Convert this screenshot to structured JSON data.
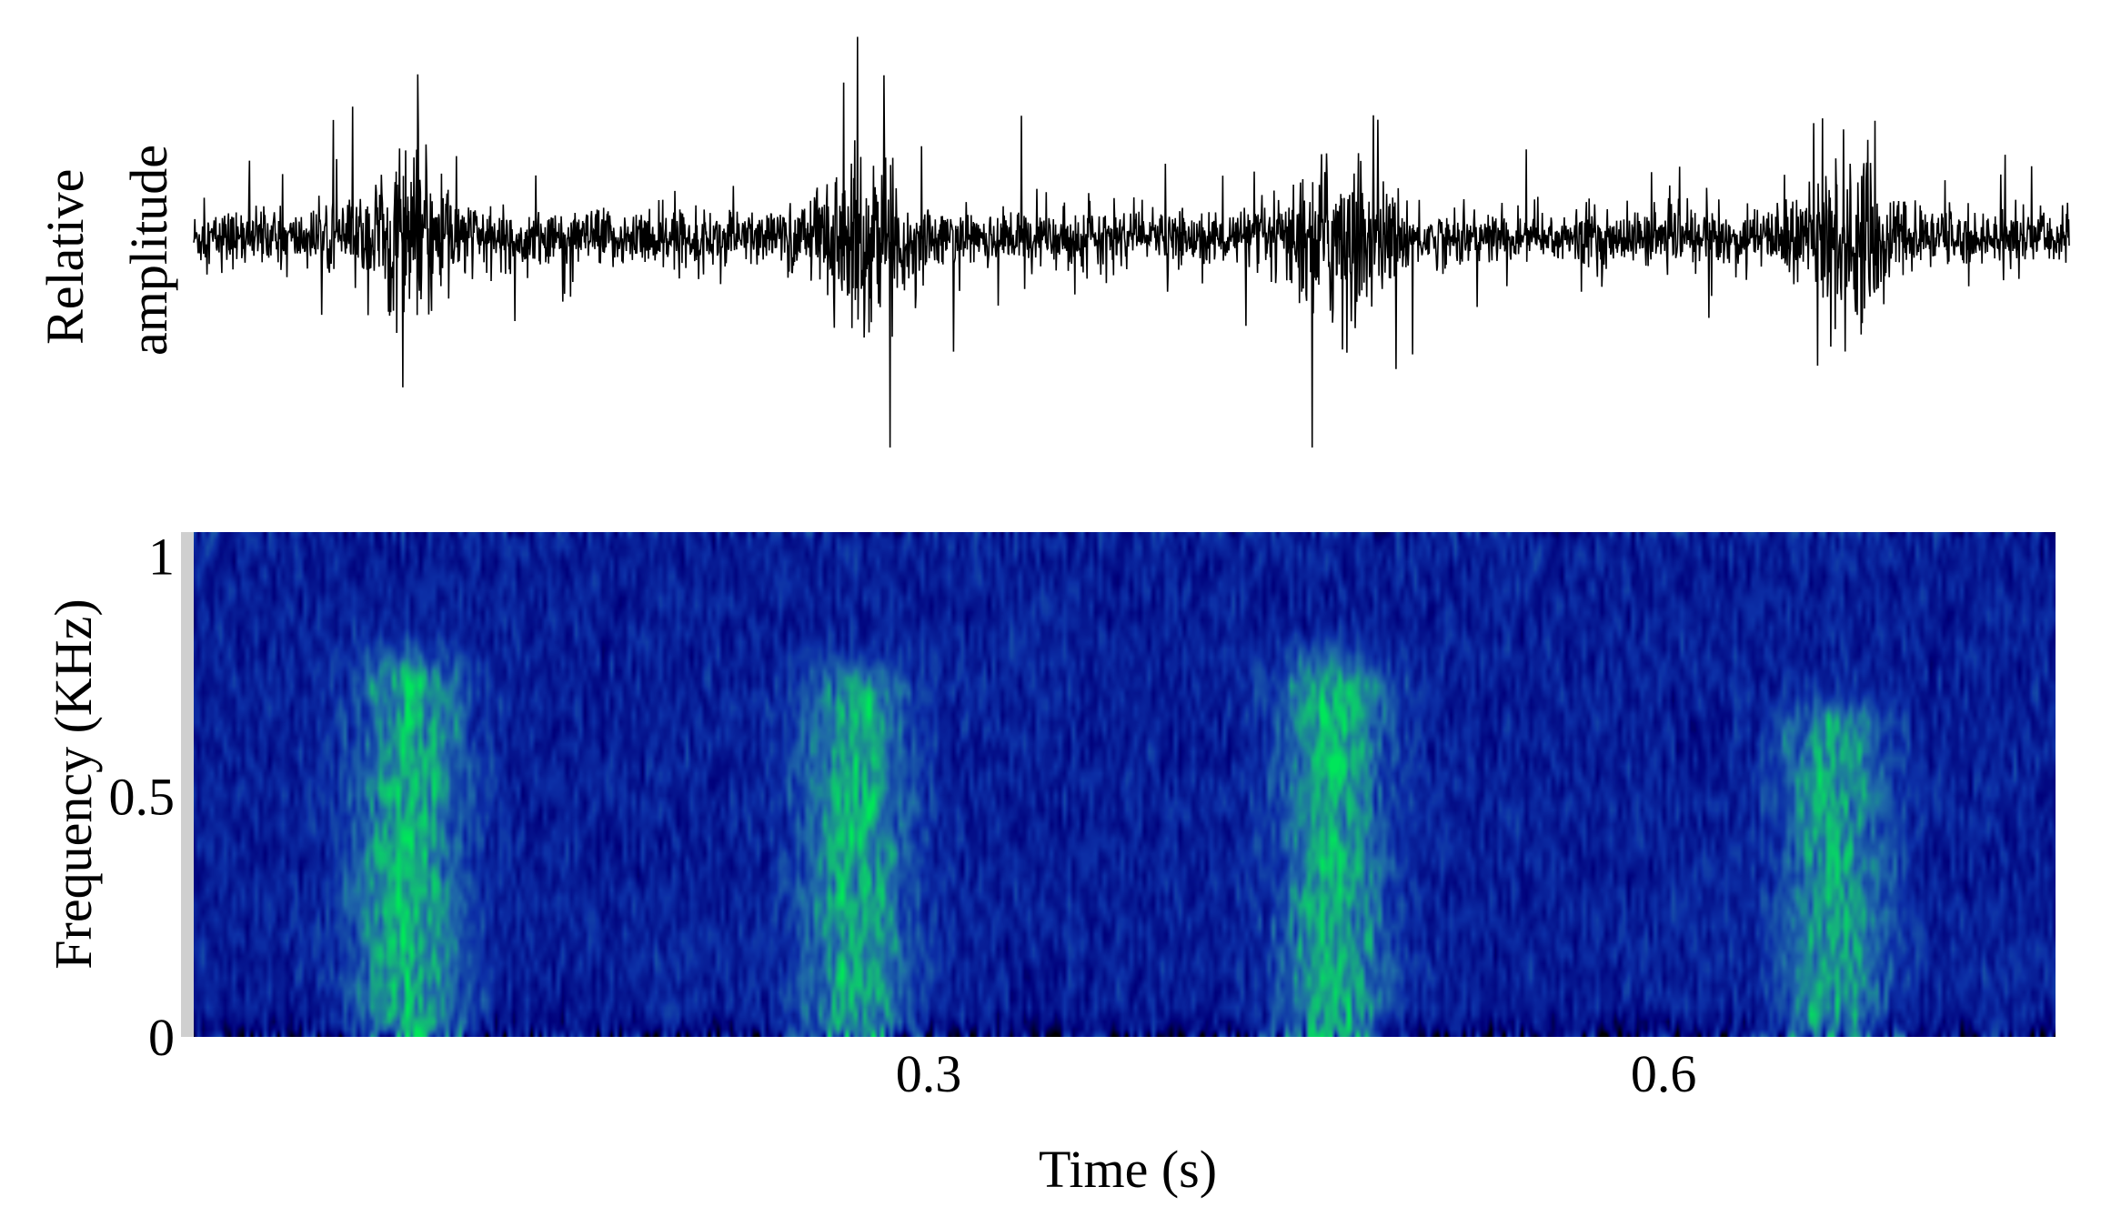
{
  "chart_data": [
    {
      "type": "line",
      "title": "",
      "ylabel_lines": [
        "Relative",
        "amplitude"
      ],
      "xlabel": "",
      "axes_visible": false,
      "grid": false,
      "x_range_s": [
        0.0,
        0.76
      ],
      "y_range": [
        -1.0,
        1.0
      ],
      "description_values": {
        "baseline_envelope": 0.12,
        "burst_centers_s": [
          0.088,
          0.27,
          0.465,
          0.67
        ],
        "burst_peak_amplitude": 1.0
      },
      "color": "#000000"
    },
    {
      "type": "heatmap",
      "title": "",
      "xlabel": "Time (s)",
      "ylabel": "Frequency (KHz)",
      "x_range": [
        0.0,
        0.76
      ],
      "y_range": [
        0.0,
        1.05
      ],
      "xticks": [
        0.3,
        0.6
      ],
      "xtick_labels": [
        "0.3",
        "0.6"
      ],
      "yticks": [
        0,
        0.5,
        1
      ],
      "ytick_labels": [
        "0",
        "0.5",
        "1"
      ],
      "colormap": [
        "#000000",
        "#00007a",
        "#0c2fa6",
        "#1f6aa8",
        "#16b07d",
        "#00e65a"
      ],
      "energy_bursts": [
        {
          "time_s": 0.088,
          "freq_khz": [
            0.0,
            0.72
          ],
          "intensity": 1.0
        },
        {
          "time_s": 0.27,
          "freq_khz": [
            0.0,
            0.7
          ],
          "intensity": 0.95
        },
        {
          "time_s": 0.465,
          "freq_khz": [
            0.0,
            0.72
          ],
          "intensity": 0.95
        },
        {
          "time_s": 0.67,
          "freq_khz": [
            0.0,
            0.62
          ],
          "intensity": 0.9
        }
      ],
      "grid": false
    }
  ]
}
